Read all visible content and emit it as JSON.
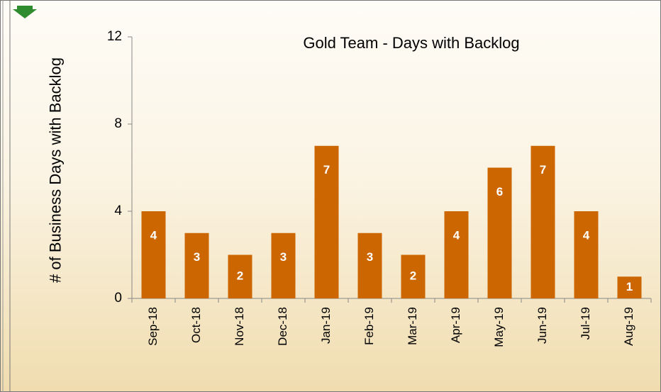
{
  "chart_data": {
    "type": "bar",
    "title": "Gold Team - Days with Backlog",
    "y_label": "# of Business Days with Backlog",
    "categories": [
      "Sep-18",
      "Oct-18",
      "Nov-18",
      "Dec-18",
      "Jan-19",
      "Feb-19",
      "Mar-19",
      "Apr-19",
      "May-19",
      "Jun-19",
      "Jul-19",
      "Aug-19"
    ],
    "values": [
      4,
      3,
      2,
      3,
      7,
      3,
      2,
      4,
      6,
      7,
      4,
      1
    ],
    "color": "#cc6600",
    "ylim": [
      0,
      12
    ],
    "yticks": [
      0,
      4,
      8,
      12
    ],
    "grid": false
  }
}
